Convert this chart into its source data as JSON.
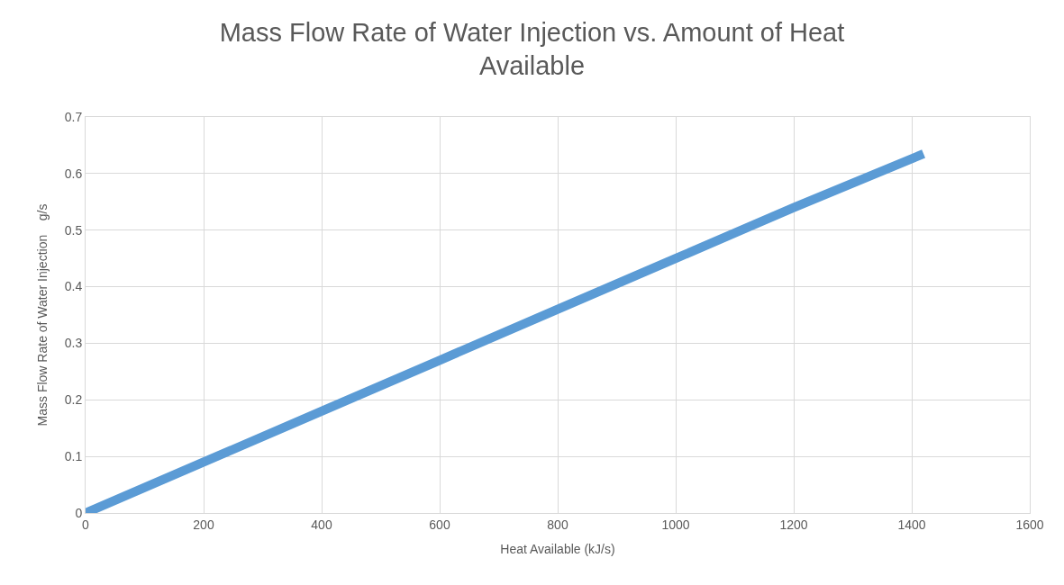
{
  "chart_data": {
    "type": "line",
    "title": "Mass Flow Rate of Water Injection vs. Amount of Heat\nAvailable",
    "xlabel": "Heat Available (kJ/s)",
    "ylabel": "Mass Flow Rate of Water Injection    g/s",
    "x": [
      0,
      200,
      400,
      600,
      800,
      1000,
      1200,
      1420
    ],
    "series": [
      {
        "color": "#5b9bd5",
        "values": [
          0,
          0.09,
          0.18,
          0.27,
          0.36,
          0.45,
          0.54,
          0.635
        ]
      }
    ],
    "xlim": [
      0,
      1600
    ],
    "xticks": [
      0,
      200,
      400,
      600,
      800,
      1000,
      1200,
      1400,
      1600
    ],
    "ylim": [
      0,
      0.7
    ],
    "yticks": [
      0,
      0.1,
      0.2,
      0.3,
      0.4,
      0.5,
      0.6,
      0.7
    ],
    "grid": true,
    "marker": "none",
    "line_style": "solid"
  }
}
